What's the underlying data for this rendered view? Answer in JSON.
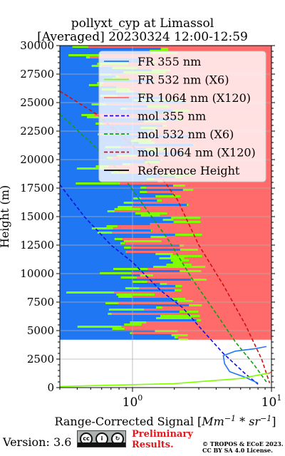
{
  "title": {
    "line1": "pollyxt_cyp at Limassol",
    "line2": "[Averaged] 20230324 12:00-12:59"
  },
  "footer": {
    "version": "Version: 3.6",
    "license_badge": "BY SA",
    "preliminary": [
      "Preliminary",
      "Results."
    ],
    "copyright": [
      "© TROPOS & ECoE 2023.",
      "CC BY SA 4.0 License."
    ]
  },
  "colors": {
    "fr355": "#1f77f4",
    "fr532": "#80ff00",
    "fr1064": "#ff6b6b",
    "mol355": "#1010e0",
    "mol532": "#10a010",
    "mol1064": "#d01010",
    "reference": "#000000"
  },
  "chart_data": {
    "type": "line",
    "xlabel": "Range-Corrected Signal [Mm^-1 * sr^-1]",
    "ylabel": "Height (m)",
    "x_scale": "log",
    "xlim": [
      0.3,
      10
    ],
    "ylim": [
      0,
      30000
    ],
    "x_ticks": [
      "10^0",
      "10^1"
    ],
    "y_ticks": [
      "0",
      "2500",
      "5000",
      "7500",
      "10000",
      "12500",
      "15000",
      "17500",
      "20000",
      "22500",
      "25000",
      "27500",
      "30000"
    ],
    "grid": true,
    "legend_position": "top-right",
    "legend": [
      "FR 355 nm",
      "FR 532 nm (X6)",
      "FR 1064 nm (X120)",
      "mol 355 nm",
      "mol 532 nm (X6)",
      "mol 1064 nm (X120)",
      "Reference Height"
    ],
    "series": [
      {
        "name": "mol 355 nm",
        "style": "dashed",
        "x": [
          0.3,
          0.45,
          0.7,
          1.0,
          1.6,
          2.3,
          3.2,
          4.5,
          6.5,
          8.0
        ],
        "y": [
          17800,
          15000,
          12500,
          11000,
          8500,
          7000,
          5000,
          3000,
          1200,
          300
        ]
      },
      {
        "name": "mol 532 nm (X6)",
        "style": "dashed",
        "x": [
          0.3,
          0.5,
          0.8,
          1.2,
          1.8,
          2.7,
          4.0,
          5.5,
          7.5,
          9.2
        ],
        "y": [
          24000,
          21500,
          19000,
          16000,
          13000,
          9500,
          6500,
          4000,
          2000,
          500
        ]
      },
      {
        "name": "mol 1064 nm (X120)",
        "style": "dashed",
        "x": [
          0.3,
          0.55,
          0.95,
          1.6,
          2.1,
          3.0,
          4.5,
          6.5,
          8.5,
          9.7
        ],
        "y": [
          26000,
          24000,
          21500,
          18500,
          16500,
          12500,
          9000,
          5500,
          2500,
          400
        ]
      },
      {
        "name": "FR 355 nm",
        "style": "solid",
        "x": [
          9.2,
          7.5,
          5.5,
          4.5,
          4.6,
          5.0,
          6.5,
          8.0
        ],
        "y": [
          3600,
          3400,
          3200,
          2800,
          2100,
          1400,
          900,
          400
        ]
      },
      {
        "name": "FR 532 nm (X6)",
        "style": "solid",
        "x": [
          0.3,
          2.0,
          6.0,
          9.8
        ],
        "y": [
          100,
          350,
          800,
          1300
        ]
      },
      {
        "name": "FR 1064 nm (X120)",
        "style": "solid",
        "x": [
          9.5,
          10
        ],
        "y": [
          1200,
          1400
        ]
      }
    ]
  }
}
